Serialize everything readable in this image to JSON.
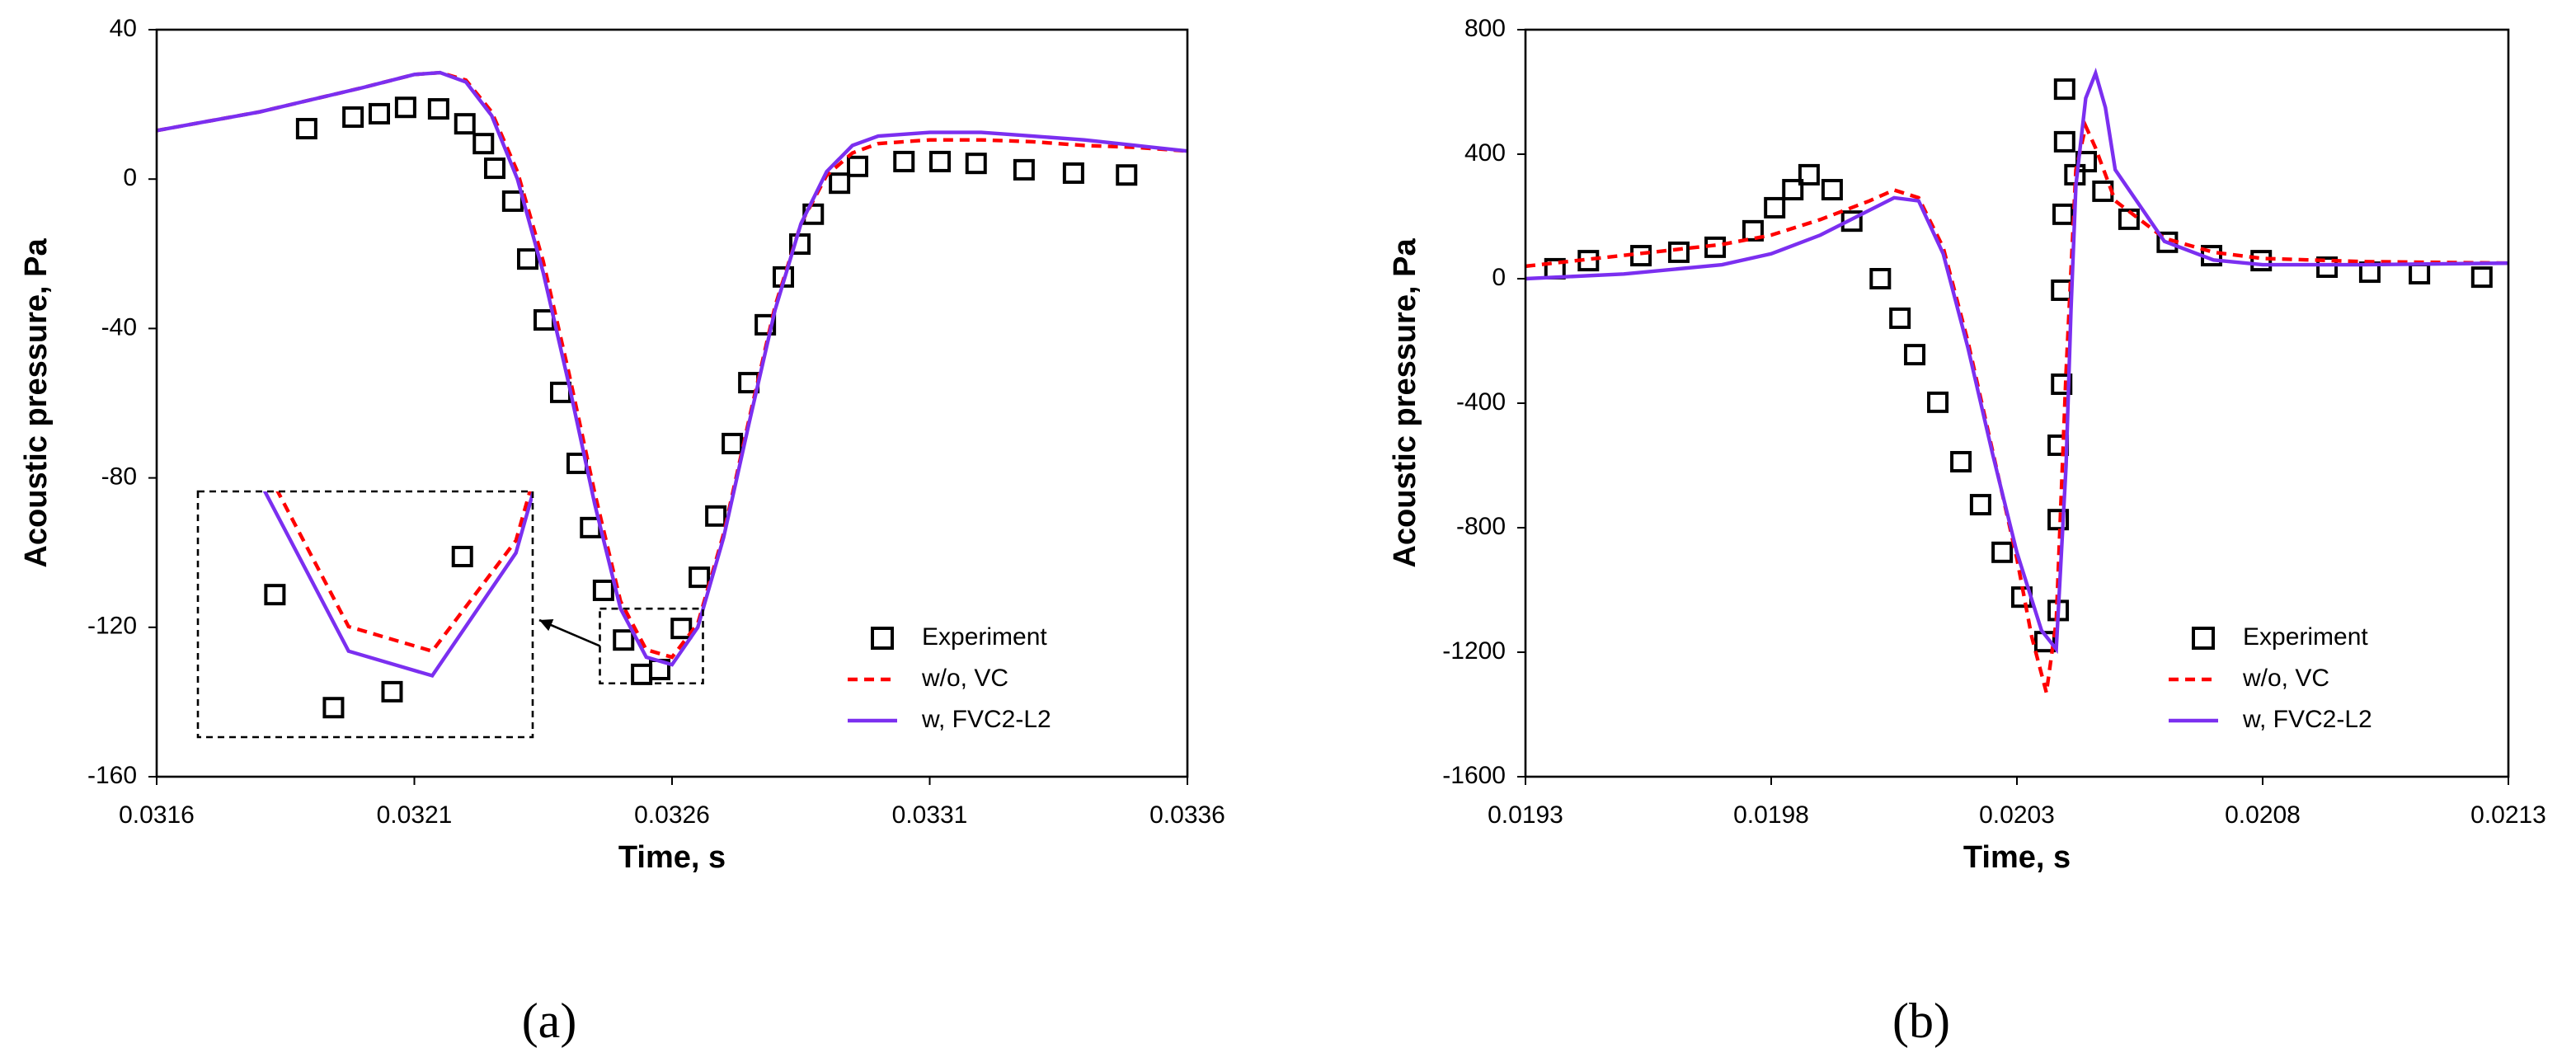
{
  "chart_data": [
    {
      "type": "line",
      "label": "(a)",
      "xlabel": "Time, s",
      "ylabel": "Acoustic pressure, Pa",
      "xlim": [
        0.0316,
        0.0336
      ],
      "xticks": [
        0.0316,
        0.0321,
        0.0326,
        0.0331,
        0.0336
      ],
      "ylim": [
        -160,
        40
      ],
      "yticks": [
        -160,
        -120,
        -80,
        -40,
        0,
        40
      ],
      "grid": false,
      "legend": "lower right",
      "inset": {
        "xlim": [
          0.03246,
          0.03266
        ],
        "ylim": [
          -135,
          -115
        ]
      },
      "series": [
        {
          "name": "Experiment",
          "color": "#000000",
          "marker": "square",
          "x": [
            0.031891,
            0.031981,
            0.032032,
            0.032083,
            0.032147,
            0.032198,
            0.032234,
            0.032256,
            0.032291,
            0.03232,
            0.032352,
            0.032384,
            0.032416,
            0.032442,
            0.032467,
            0.032506,
            0.032541,
            0.032576,
            0.032618,
            0.032653,
            0.032685,
            0.032717,
            0.032749,
            0.032781,
            0.032816,
            0.032848,
            0.032874,
            0.032925,
            0.03296,
            0.03305,
            0.03312,
            0.03319,
            0.033283,
            0.033379,
            0.033482
          ],
          "values": [
            13.5,
            16.6,
            17.5,
            19.2,
            18.8,
            14.8,
            9.5,
            2.9,
            -5.9,
            -21.4,
            -37.7,
            -57.1,
            -76.1,
            -93.3,
            -110.1,
            -123.4,
            -132.6,
            -131.3,
            -120.3,
            -106.6,
            -90.2,
            -70.8,
            -54.5,
            -39,
            -26.2,
            -17.4,
            -9.4,
            -1.1,
            3.4,
            4.7,
            4.7,
            4.2,
            2.5,
            1.6,
            1.1
          ]
        },
        {
          "name": "w/o, VC",
          "color": "#ff0000",
          "dash": true,
          "x": [
            0.0316,
            0.0318,
            0.032,
            0.0321,
            0.03215,
            0.0322,
            0.03225,
            0.0323,
            0.03235,
            0.0324,
            0.03245,
            0.0325,
            0.03255,
            0.0326,
            0.03265,
            0.0327,
            0.03275,
            0.0328,
            0.03285,
            0.0329,
            0.03295,
            0.033,
            0.0331,
            0.0332,
            0.0333,
            0.0334,
            0.0335,
            0.0336
          ],
          "values": [
            13,
            18,
            24.5,
            28,
            28.5,
            26.5,
            18,
            2,
            -22,
            -52,
            -84,
            -113,
            -126,
            -128,
            -119,
            -95,
            -64,
            -34,
            -12,
            1,
            7,
            9.5,
            10.5,
            10.5,
            10,
            9,
            8.5,
            7.5
          ]
        },
        {
          "name": "w, FVC2-L2",
          "color": "#7b2ff0",
          "x": [
            0.0316,
            0.0318,
            0.032,
            0.0321,
            0.03215,
            0.0322,
            0.03225,
            0.0323,
            0.03235,
            0.0324,
            0.03245,
            0.0325,
            0.03255,
            0.0326,
            0.03265,
            0.0327,
            0.03275,
            0.0328,
            0.03285,
            0.0329,
            0.03295,
            0.033,
            0.0331,
            0.0332,
            0.0333,
            0.0334,
            0.0335,
            0.0336
          ],
          "values": [
            13,
            18,
            24.5,
            28,
            28.5,
            26,
            17,
            0,
            -25,
            -55,
            -87,
            -115,
            -128,
            -130,
            -120,
            -96,
            -65,
            -35,
            -12,
            2,
            9,
            11.5,
            12.5,
            12.5,
            11.5,
            10.5,
            9,
            7.5
          ]
        }
      ]
    },
    {
      "type": "line",
      "label": "(b)",
      "xlabel": "Time, s",
      "ylabel": "Acoustic pressure, Pa",
      "xlim": [
        0.0193,
        0.0213
      ],
      "xticks": [
        0.0193,
        0.0198,
        0.0203,
        0.0208,
        0.0213
      ],
      "ylim": [
        -1600,
        800
      ],
      "yticks": [
        -1600,
        -1200,
        -800,
        -400,
        0,
        400,
        800
      ],
      "grid": false,
      "legend": "lower right",
      "series": [
        {
          "name": "Experiment",
          "color": "#000000",
          "marker": "square",
          "x": [
            0.01936,
            0.019428,
            0.019535,
            0.019612,
            0.019686,
            0.019763,
            0.019807,
            0.019844,
            0.019877,
            0.019924,
            0.019964,
            0.020022,
            0.020062,
            0.020092,
            0.020139,
            0.020186,
            0.020226,
            0.02027,
            0.02031,
            0.020357,
            0.020384,
            0.020384,
            0.020384,
            0.020391,
            0.020391,
            0.020394,
            0.020397,
            0.020397,
            0.020418,
            0.020441,
            0.020475,
            0.020528,
            0.020606,
            0.020696,
            0.020797,
            0.020931,
            0.021018,
            0.021119,
            0.021246
          ],
          "values": [
            32,
            58,
            74,
            85,
            101,
            154,
            228,
            286,
            334,
            286,
            185,
            0,
            -127,
            -244,
            -397,
            -588,
            -726,
            -879,
            -1023,
            -1166,
            -1066,
            -774,
            -535,
            -339,
            -37,
            207,
            440,
            609,
            334,
            376,
            281,
            191,
            117,
            74,
            58,
            37,
            21,
            16,
            5
          ]
        },
        {
          "name": "w/o, VC",
          "color": "#ff0000",
          "dash": true,
          "x": [
            0.0193,
            0.0195,
            0.0197,
            0.0198,
            0.0199,
            0.02,
            0.02005,
            0.0201,
            0.02015,
            0.0202,
            0.02025,
            0.0203,
            0.02033,
            0.02036,
            0.02038,
            0.0204,
            0.02042,
            0.02044,
            0.02046,
            0.0205,
            0.0206,
            0.0207,
            0.0208,
            0.021,
            0.0213
          ],
          "values": [
            40,
            75,
            110,
            140,
            190,
            250,
            285,
            260,
            100,
            -200,
            -550,
            -900,
            -1150,
            -1330,
            -1100,
            -300,
            350,
            490,
            420,
            250,
            130,
            85,
            65,
            55,
            50
          ]
        },
        {
          "name": "w, FVC2-L2",
          "color": "#7b2ff0",
          "x": [
            0.0193,
            0.0195,
            0.0197,
            0.0198,
            0.0199,
            0.02,
            0.02005,
            0.0201,
            0.02015,
            0.0202,
            0.02025,
            0.0203,
            0.02035,
            0.02038,
            0.0204,
            0.02041,
            0.02042,
            0.02044,
            0.02046,
            0.02048,
            0.0205,
            0.0206,
            0.0207,
            0.0208,
            0.021,
            0.0213
          ],
          "values": [
            0,
            15,
            45,
            80,
            140,
            220,
            260,
            250,
            80,
            -220,
            -560,
            -880,
            -1130,
            -1190,
            -600,
            -100,
            300,
            580,
            660,
            550,
            350,
            120,
            60,
            45,
            45,
            50
          ]
        }
      ]
    }
  ]
}
